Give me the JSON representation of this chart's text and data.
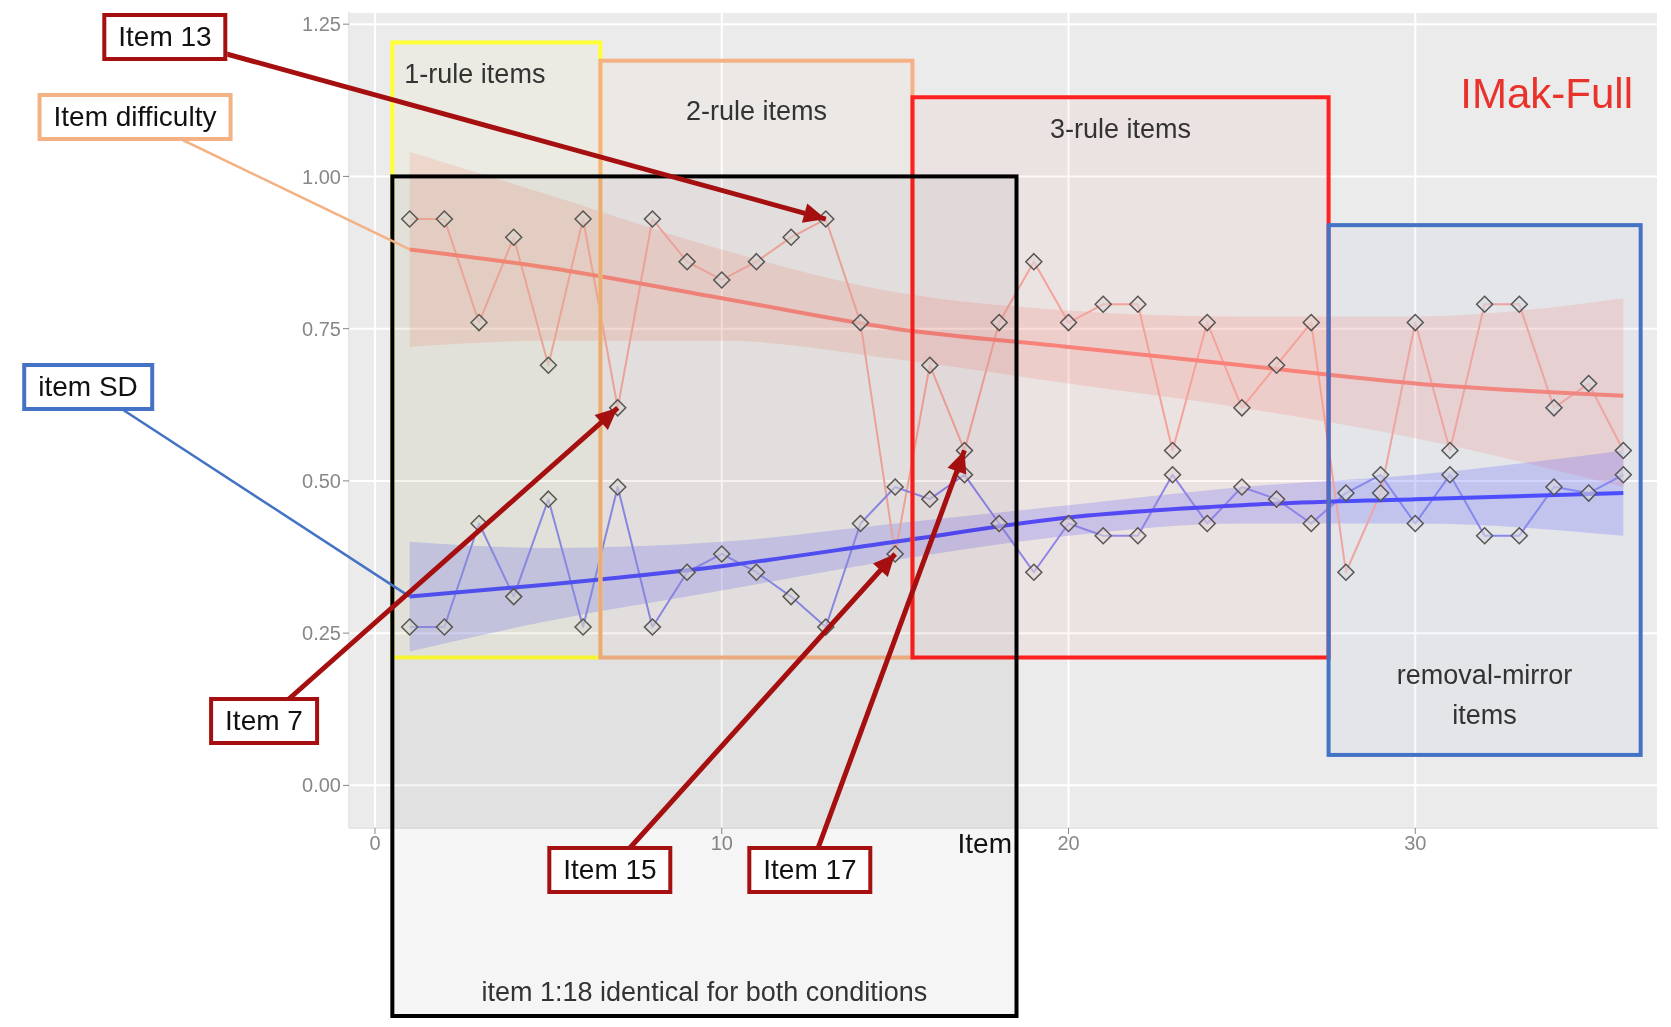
{
  "chart_data": {
    "type": "line",
    "title": "IMak-Full",
    "xlabel": "Item",
    "x": [
      1,
      2,
      3,
      4,
      5,
      6,
      7,
      8,
      9,
      10,
      11,
      12,
      13,
      14,
      15,
      16,
      17,
      18,
      19,
      20,
      21,
      22,
      23,
      24,
      25,
      26,
      27,
      28,
      29,
      30,
      31,
      32,
      33,
      34,
      35,
      36
    ],
    "series": [
      {
        "color": "#f4a8a0",
        "values": [
          0.93,
          0.93,
          0.76,
          0.9,
          0.69,
          0.93,
          0.62,
          0.93,
          0.86,
          0.83,
          0.86,
          0.9,
          0.93,
          0.76,
          0.38,
          0.69,
          0.55,
          0.76,
          0.86,
          0.76,
          0.79,
          0.79,
          0.55,
          0.76,
          0.62,
          0.69,
          0.76,
          0.35,
          0.48,
          0.76,
          0.55,
          0.79,
          0.79,
          0.62,
          0.66,
          0.55
        ]
      },
      {
        "color": "#8a8af0",
        "values": [
          0.26,
          0.26,
          0.43,
          0.31,
          0.47,
          0.26,
          0.49,
          0.26,
          0.35,
          0.38,
          0.35,
          0.31,
          0.26,
          0.43,
          0.49,
          0.47,
          0.51,
          0.43,
          0.35,
          0.43,
          0.41,
          0.41,
          0.51,
          0.43,
          0.49,
          0.47,
          0.43,
          0.48,
          0.51,
          0.43,
          0.51,
          0.41,
          0.41,
          0.49,
          0.48,
          0.51
        ]
      },
      {
        "type": "line",
        "marker": "none",
        "color": "#f8877d",
        "x": [
          1,
          5,
          10,
          15,
          20,
          25,
          30,
          36
        ],
        "values": [
          0.88,
          0.85,
          0.8,
          0.75,
          0.72,
          0.69,
          0.66,
          0.64
        ],
        "lower": [
          0.72,
          0.73,
          0.73,
          0.7,
          0.66,
          0.62,
          0.57,
          0.49
        ],
        "upper": [
          1.04,
          0.97,
          0.88,
          0.81,
          0.78,
          0.77,
          0.77,
          0.8
        ]
      },
      {
        "type": "line",
        "marker": "none",
        "color": "#4d4dff",
        "x": [
          1,
          5,
          10,
          15,
          20,
          25,
          30,
          36
        ],
        "values": [
          0.31,
          0.33,
          0.36,
          0.4,
          0.44,
          0.46,
          0.47,
          0.48
        ],
        "lower": [
          0.22,
          0.27,
          0.32,
          0.37,
          0.41,
          0.43,
          0.43,
          0.41
        ],
        "upper": [
          0.4,
          0.39,
          0.4,
          0.43,
          0.46,
          0.49,
          0.51,
          0.55
        ]
      }
    ],
    "xlim": [
      -0.75,
      37
    ],
    "xticks": [
      0,
      10,
      20,
      30
    ],
    "ylim": [
      -0.07,
      1.27
    ],
    "yticks": [
      {
        "value": 0,
        "label": "0.00"
      },
      {
        "value": 0.25,
        "label": "0.25"
      },
      {
        "value": 0.5,
        "label": "0.50"
      },
      {
        "value": 0.75,
        "label": "0.75"
      },
      {
        "value": 1,
        "label": "1.00"
      },
      {
        "value": 1.25,
        "label": "1.25"
      }
    ],
    "grid": true,
    "marker": "diamond",
    "line_style": "solid",
    "bands": [
      {
        "axis": "x",
        "from": 0.5,
        "to": 6.5,
        "label": "1-rule items",
        "color": "#ffff33"
      },
      {
        "axis": "x",
        "from": 6.5,
        "to": 15.5,
        "label": "2-rule items",
        "color": "#f4b183"
      },
      {
        "axis": "x",
        "from": 15.5,
        "to": 27.5,
        "label": "3-rule items",
        "color": "#ff2020"
      },
      {
        "axis": "x",
        "from": 27.5,
        "to": 36.5,
        "label": "removal-mirror items",
        "color": "#4472c4"
      },
      {
        "axis": "x",
        "from": 0.5,
        "to": 18.5,
        "label": "item 1:18 identical for both conditions",
        "color": "#000000"
      }
    ],
    "annotations": [
      {
        "text": "Item difficulty",
        "x": 1,
        "y": 0.88
      },
      {
        "text": "item SD",
        "x": 1,
        "y": 0.31
      },
      {
        "text": "Item 13",
        "x": 13,
        "y": 0.93
      },
      {
        "text": "Item 7",
        "x": 7,
        "y": 0.62
      },
      {
        "text": "Item 15",
        "x": 15,
        "y": 0.38
      },
      {
        "text": "Item 17",
        "x": 17,
        "y": 0.55
      }
    ]
  }
}
